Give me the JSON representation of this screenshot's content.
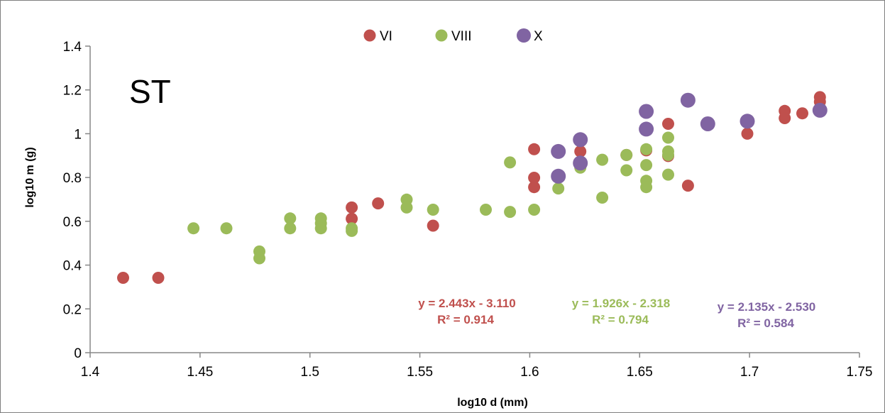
{
  "chart_data": {
    "type": "scatter",
    "panel_label": "ST",
    "xlabel": "log10 d (mm)",
    "ylabel": "log10 m (g)",
    "xlim": [
      1.4,
      1.75
    ],
    "ylim": [
      0,
      1.4
    ],
    "x_ticks": [
      "1.4",
      "1.45",
      "1.5",
      "1.55",
      "1.6",
      "1.65",
      "1.7",
      "1.75"
    ],
    "y_ticks": [
      "0",
      "0.2",
      "0.4",
      "0.6",
      "0.8",
      "1",
      "1.2",
      "1.4"
    ],
    "grid": false,
    "legend_position": "top-center",
    "series": [
      {
        "name": "VI",
        "color": "#c0504d",
        "equation": "y = 2.443x - 3.110",
        "r2": "R² = 0.914",
        "points": [
          [
            1.415,
            0.342
          ],
          [
            1.431,
            0.342
          ],
          [
            1.519,
            0.663
          ],
          [
            1.519,
            0.612
          ],
          [
            1.531,
            0.682
          ],
          [
            1.556,
            0.58
          ],
          [
            1.602,
            0.929
          ],
          [
            1.602,
            0.799
          ],
          [
            1.602,
            0.756
          ],
          [
            1.623,
            0.919
          ],
          [
            1.644,
            0.903
          ],
          [
            1.653,
            0.924
          ],
          [
            1.663,
            1.045
          ],
          [
            1.663,
            0.898
          ],
          [
            1.672,
            0.763
          ],
          [
            1.699,
            1.0
          ],
          [
            1.716,
            1.104
          ],
          [
            1.716,
            1.071
          ],
          [
            1.724,
            1.093
          ],
          [
            1.732,
            1.167
          ],
          [
            1.732,
            1.146
          ]
        ]
      },
      {
        "name": "VIII",
        "color": "#9bbb59",
        "equation": "y = 1.926x - 2.318",
        "r2": "R² = 0.794",
        "points": [
          [
            1.447,
            0.568
          ],
          [
            1.462,
            0.568
          ],
          [
            1.477,
            0.462
          ],
          [
            1.477,
            0.431
          ],
          [
            1.491,
            0.613
          ],
          [
            1.491,
            0.568
          ],
          [
            1.505,
            0.613
          ],
          [
            1.505,
            0.591
          ],
          [
            1.505,
            0.568
          ],
          [
            1.519,
            0.568
          ],
          [
            1.519,
            0.556
          ],
          [
            1.544,
            0.699
          ],
          [
            1.544,
            0.663
          ],
          [
            1.556,
            0.653
          ],
          [
            1.58,
            0.653
          ],
          [
            1.591,
            0.869
          ],
          [
            1.591,
            0.643
          ],
          [
            1.602,
            0.653
          ],
          [
            1.613,
            0.75
          ],
          [
            1.623,
            0.845
          ],
          [
            1.633,
            0.881
          ],
          [
            1.633,
            0.708
          ],
          [
            1.644,
            0.903
          ],
          [
            1.644,
            0.833
          ],
          [
            1.653,
            0.929
          ],
          [
            1.653,
            0.857
          ],
          [
            1.653,
            0.785
          ],
          [
            1.653,
            0.756
          ],
          [
            1.663,
            0.982
          ],
          [
            1.663,
            0.919
          ],
          [
            1.663,
            0.903
          ],
          [
            1.663,
            0.813
          ]
        ]
      },
      {
        "name": "X",
        "color": "#8064a2",
        "equation": "y = 2.135x - 2.530",
        "r2": "R² = 0.584",
        "points": [
          [
            1.613,
            0.919
          ],
          [
            1.613,
            0.806
          ],
          [
            1.623,
            0.973
          ],
          [
            1.623,
            0.866
          ],
          [
            1.653,
            1.102
          ],
          [
            1.653,
            1.021
          ],
          [
            1.672,
            1.153
          ],
          [
            1.681,
            1.045
          ],
          [
            1.699,
            1.057
          ],
          [
            1.732,
            1.107
          ]
        ]
      }
    ]
  }
}
